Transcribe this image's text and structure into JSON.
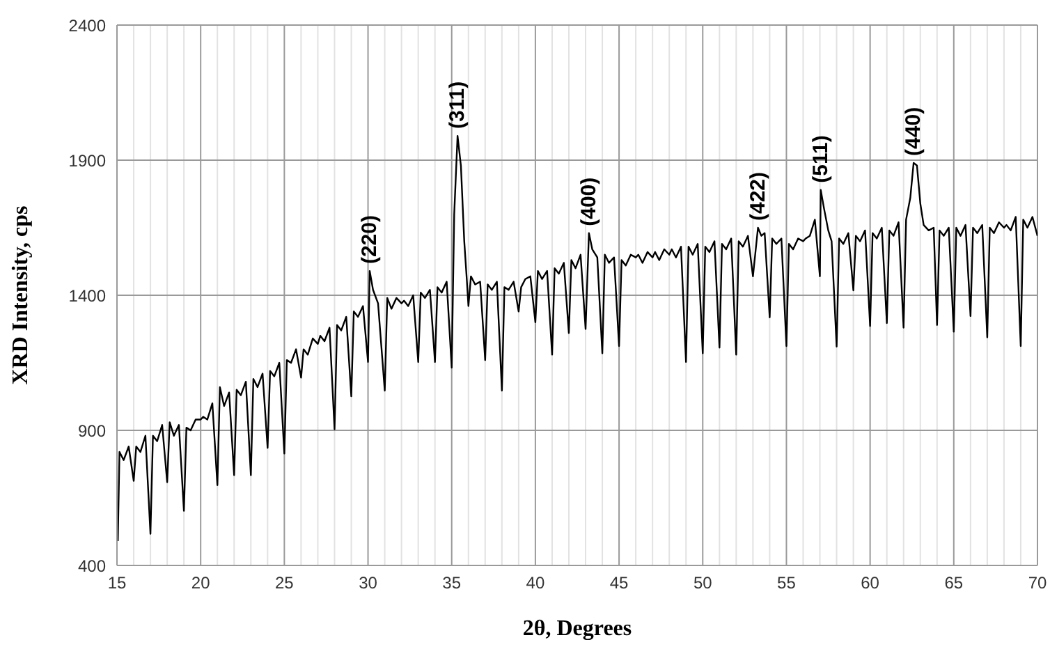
{
  "chart_data": {
    "type": "line",
    "xlabel": "2θ, Degrees",
    "ylabel": "XRD Intensity, cps",
    "xlim": [
      15,
      70
    ],
    "ylim": [
      400,
      2400
    ],
    "xticks": [
      15,
      {
        "value": 16,
        "label": null
      },
      {
        "value": 17,
        "label": null
      },
      {
        "value": 18,
        "label": null
      },
      {
        "value": 19,
        "label": null
      },
      20,
      {
        "value": 21,
        "label": null
      },
      {
        "value": 22,
        "label": null
      },
      {
        "value": 23,
        "label": null
      },
      {
        "value": 24,
        "label": null
      },
      25,
      {
        "value": 26,
        "label": null
      },
      {
        "value": 27,
        "label": null
      },
      {
        "value": 28,
        "label": null
      },
      {
        "value": 29,
        "label": null
      },
      30,
      {
        "value": 31,
        "label": null
      },
      {
        "value": 32,
        "label": null
      },
      {
        "value": 33,
        "label": null
      },
      {
        "value": 34,
        "label": null
      },
      35,
      {
        "value": 36,
        "label": null
      },
      {
        "value": 37,
        "label": null
      },
      {
        "value": 38,
        "label": null
      },
      {
        "value": 39,
        "label": null
      },
      40,
      {
        "value": 41,
        "label": null
      },
      {
        "value": 42,
        "label": null
      },
      {
        "value": 43,
        "label": null
      },
      {
        "value": 44,
        "label": null
      },
      45,
      {
        "value": 46,
        "label": null
      },
      {
        "value": 47,
        "label": null
      },
      {
        "value": 48,
        "label": null
      },
      {
        "value": 49,
        "label": null
      },
      50,
      {
        "value": 51,
        "label": null
      },
      {
        "value": 52,
        "label": null
      },
      {
        "value": 53,
        "label": null
      },
      {
        "value": 54,
        "label": null
      },
      55,
      {
        "value": 56,
        "label": null
      },
      {
        "value": 57,
        "label": null
      },
      {
        "value": 58,
        "label": null
      },
      {
        "value": 59,
        "label": null
      },
      60,
      {
        "value": 61,
        "label": null
      },
      {
        "value": 62,
        "label": null
      },
      {
        "value": 63,
        "label": null
      },
      {
        "value": 64,
        "label": null
      },
      65,
      {
        "value": 66,
        "label": null
      },
      {
        "value": 67,
        "label": null
      },
      {
        "value": 68,
        "label": null
      },
      {
        "value": 69,
        "label": null
      },
      70
    ],
    "yticks": [
      400,
      900,
      1400,
      1900,
      2400
    ],
    "grid": true,
    "legend": false,
    "marker": "none",
    "line_style": "solid",
    "series": [
      {
        "color": "#000000",
        "x": [
          15.05,
          15.15,
          15.4,
          15.7,
          16,
          16.15,
          16.4,
          16.7,
          17,
          17.15,
          17.4,
          17.7,
          18,
          18.15,
          18.4,
          18.7,
          19,
          19.15,
          19.4,
          19.7,
          20,
          20.15,
          20.4,
          20.7,
          21,
          21.15,
          21.4,
          21.7,
          22,
          22.15,
          22.4,
          22.7,
          23,
          23.15,
          23.4,
          23.7,
          24,
          24.15,
          24.4,
          24.7,
          25,
          25.15,
          25.4,
          25.7,
          26,
          26.15,
          26.4,
          26.7,
          27,
          27.15,
          27.4,
          27.7,
          28,
          28.15,
          28.4,
          28.7,
          29,
          29.15,
          29.4,
          29.7,
          30,
          30.1,
          30.3,
          30.6,
          31,
          31.15,
          31.4,
          31.7,
          32,
          32.15,
          32.4,
          32.7,
          33,
          33.15,
          33.4,
          33.7,
          34,
          34.15,
          34.4,
          34.7,
          35,
          35.15,
          35.35,
          35.55,
          35.75,
          35.9,
          36,
          36.15,
          36.4,
          36.7,
          37,
          37.15,
          37.4,
          37.7,
          38,
          38.15,
          38.4,
          38.7,
          39,
          39.15,
          39.4,
          39.7,
          40,
          40.15,
          40.4,
          40.7,
          41,
          41.15,
          41.4,
          41.7,
          42,
          42.15,
          42.4,
          42.7,
          43,
          43.2,
          43.4,
          43.7,
          44,
          44.15,
          44.4,
          44.7,
          45,
          45.15,
          45.4,
          45.7,
          46,
          46.15,
          46.4,
          46.7,
          47,
          47.15,
          47.4,
          47.7,
          48,
          48.15,
          48.4,
          48.7,
          49,
          49.15,
          49.4,
          49.7,
          50,
          50.15,
          50.4,
          50.7,
          51,
          51.15,
          51.4,
          51.7,
          52,
          52.15,
          52.4,
          52.7,
          53,
          53.3,
          53.5,
          53.7,
          54,
          54.15,
          54.4,
          54.7,
          55,
          55.15,
          55.4,
          55.7,
          56,
          56.15,
          56.4,
          56.7,
          57,
          57.05,
          57.25,
          57.5,
          57.7,
          58,
          58.15,
          58.4,
          58.7,
          59,
          59.15,
          59.4,
          59.7,
          60,
          60.15,
          60.4,
          60.7,
          61,
          61.15,
          61.4,
          61.7,
          62,
          62.15,
          62.4,
          62.6,
          62.8,
          63,
          63.2,
          63.5,
          63.8,
          64,
          64.15,
          64.4,
          64.7,
          65,
          65.15,
          65.4,
          65.7,
          66,
          66.15,
          66.4,
          66.7,
          67,
          67.15,
          67.4,
          67.7,
          68,
          68.15,
          68.4,
          68.7,
          69,
          69.15,
          69.4,
          69.7,
          70
        ],
        "values": [
          490,
          820,
          790,
          840,
          713,
          840,
          820,
          880,
          517,
          880,
          860,
          920,
          708,
          930,
          880,
          920,
          602,
          910,
          900,
          940,
          940,
          950,
          940,
          1000,
          697,
          1060,
          990,
          1040,
          734,
          1050,
          1030,
          1080,
          734,
          1090,
          1060,
          1110,
          835,
          1120,
          1100,
          1150,
          814,
          1160,
          1150,
          1200,
          1095,
          1200,
          1180,
          1240,
          1220,
          1250,
          1230,
          1280,
          904,
          1290,
          1270,
          1320,
          1026,
          1340,
          1320,
          1360,
          1153,
          1490,
          1420,
          1370,
          1047,
          1390,
          1350,
          1390,
          1370,
          1380,
          1360,
          1400,
          1153,
          1410,
          1390,
          1420,
          1153,
          1430,
          1410,
          1450,
          1132,
          1700,
          1990,
          1880,
          1600,
          1460,
          1360,
          1470,
          1440,
          1450,
          1160,
          1440,
          1420,
          1450,
          1047,
          1430,
          1420,
          1450,
          1340,
          1430,
          1460,
          1470,
          1300,
          1490,
          1460,
          1490,
          1180,
          1500,
          1480,
          1520,
          1260,
          1530,
          1500,
          1550,
          1275,
          1630,
          1570,
          1540,
          1185,
          1550,
          1520,
          1540,
          1212,
          1530,
          1510,
          1550,
          1540,
          1550,
          1520,
          1560,
          1540,
          1560,
          1530,
          1570,
          1550,
          1570,
          1540,
          1580,
          1153,
          1580,
          1550,
          1590,
          1185,
          1580,
          1560,
          1600,
          1206,
          1590,
          1570,
          1610,
          1180,
          1600,
          1580,
          1620,
          1470,
          1650,
          1620,
          1630,
          1318,
          1610,
          1590,
          1610,
          1212,
          1590,
          1570,
          1610,
          1600,
          1610,
          1620,
          1680,
          1470,
          1790,
          1720,
          1640,
          1600,
          1210,
          1610,
          1590,
          1630,
          1418,
          1620,
          1600,
          1640,
          1286,
          1630,
          1610,
          1650,
          1297,
          1640,
          1620,
          1670,
          1280,
          1680,
          1760,
          1890,
          1880,
          1740,
          1660,
          1640,
          1650,
          1290,
          1640,
          1620,
          1650,
          1265,
          1650,
          1620,
          1660,
          1323,
          1650,
          1630,
          1660,
          1244,
          1650,
          1630,
          1670,
          1650,
          1660,
          1640,
          1690,
          1212,
          1680,
          1650,
          1690,
          1620
        ]
      }
    ],
    "annotations": [
      {
        "text": "(220)",
        "x": 30.1,
        "y": 1490
      },
      {
        "text": "(311)",
        "x": 35.35,
        "y": 1990
      },
      {
        "text": "(400)",
        "x": 43.2,
        "y": 1630
      },
      {
        "text": "(422)",
        "x": 53.3,
        "y": 1650
      },
      {
        "text": "(511)",
        "x": 57.05,
        "y": 1790
      },
      {
        "text": "(440)",
        "x": 62.6,
        "y": 1890
      }
    ]
  }
}
